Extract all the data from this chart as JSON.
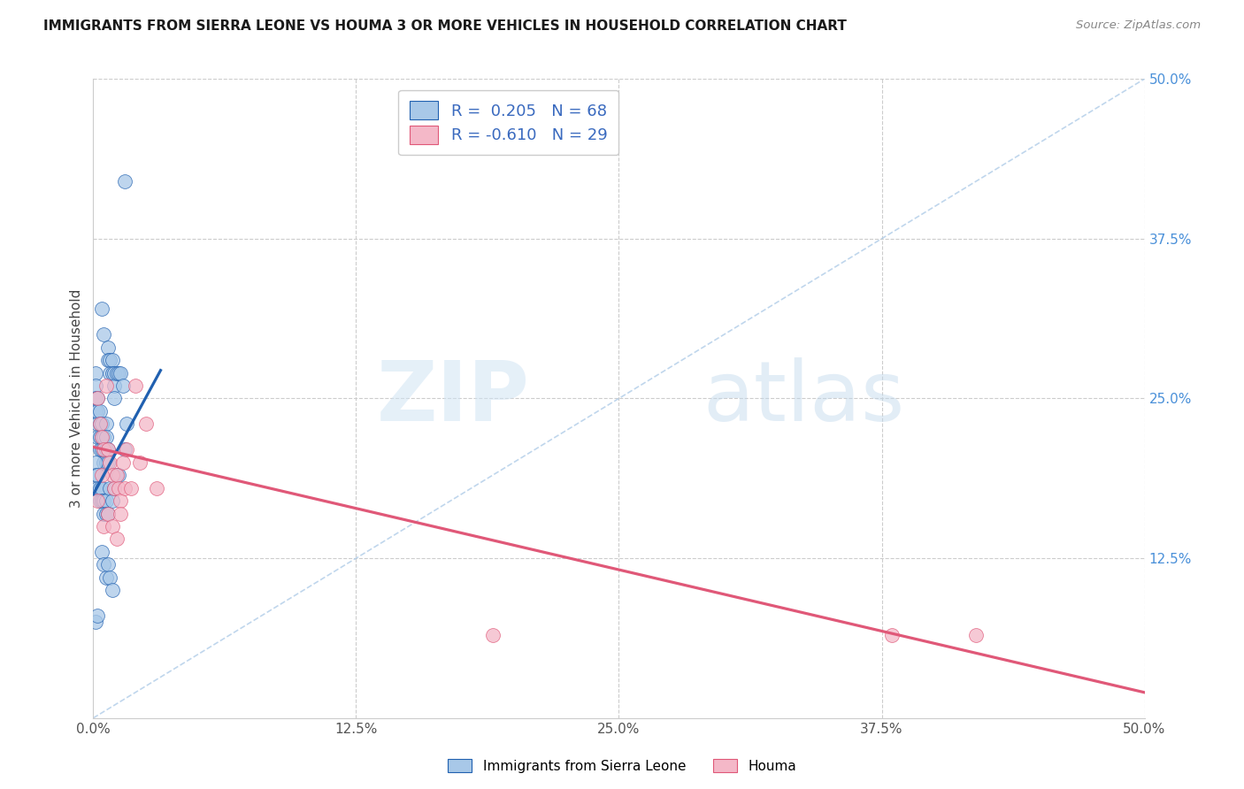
{
  "title": "IMMIGRANTS FROM SIERRA LEONE VS HOUMA 3 OR MORE VEHICLES IN HOUSEHOLD CORRELATION CHART",
  "source": "Source: ZipAtlas.com",
  "ylabel": "3 or more Vehicles in Household",
  "xlim": [
    0.0,
    0.5
  ],
  "ylim": [
    0.0,
    0.5
  ],
  "xtick_labels": [
    "0.0%",
    "",
    "",
    "",
    "",
    "12.5%",
    "",
    "",
    "",
    "",
    "25.0%",
    "",
    "",
    "",
    "",
    "37.5%",
    "",
    "",
    "",
    "",
    "50.0%"
  ],
  "xtick_vals": [
    0.0,
    0.025,
    0.05,
    0.075,
    0.1,
    0.125,
    0.15,
    0.175,
    0.2,
    0.225,
    0.25,
    0.275,
    0.3,
    0.325,
    0.35,
    0.375,
    0.4,
    0.425,
    0.45,
    0.475,
    0.5
  ],
  "ytick_right_labels": [
    "50.0%",
    "37.5%",
    "25.0%",
    "12.5%"
  ],
  "ytick_right_vals": [
    0.5,
    0.375,
    0.25,
    0.125
  ],
  "color_blue": "#a8c8e8",
  "color_pink": "#f4b8c8",
  "line_blue": "#2060b0",
  "line_pink": "#e05878",
  "line_dash_color": "#b0cce8",
  "background": "#ffffff",
  "sl_line_x0": 0.0,
  "sl_line_x1": 0.032,
  "sl_line_y0": 0.175,
  "sl_line_y1": 0.272,
  "h_line_x0": 0.0,
  "h_line_x1": 0.5,
  "h_line_y0": 0.212,
  "h_line_y1": 0.02,
  "sierra_x": [
    0.015,
    0.004,
    0.005,
    0.007,
    0.007,
    0.008,
    0.008,
    0.009,
    0.009,
    0.01,
    0.01,
    0.01,
    0.011,
    0.012,
    0.013,
    0.014,
    0.001,
    0.001,
    0.001,
    0.001,
    0.002,
    0.002,
    0.002,
    0.002,
    0.003,
    0.003,
    0.003,
    0.003,
    0.004,
    0.004,
    0.004,
    0.005,
    0.005,
    0.005,
    0.006,
    0.006,
    0.006,
    0.006,
    0.007,
    0.007,
    0.001,
    0.001,
    0.002,
    0.002,
    0.003,
    0.003,
    0.004,
    0.004,
    0.005,
    0.005,
    0.006,
    0.006,
    0.007,
    0.008,
    0.009,
    0.01,
    0.011,
    0.012,
    0.015,
    0.016,
    0.004,
    0.005,
    0.006,
    0.007,
    0.008,
    0.009,
    0.001,
    0.002
  ],
  "sierra_y": [
    0.42,
    0.32,
    0.3,
    0.29,
    0.28,
    0.28,
    0.27,
    0.28,
    0.27,
    0.27,
    0.26,
    0.25,
    0.27,
    0.27,
    0.27,
    0.26,
    0.27,
    0.26,
    0.25,
    0.24,
    0.25,
    0.24,
    0.23,
    0.22,
    0.24,
    0.23,
    0.22,
    0.21,
    0.23,
    0.22,
    0.21,
    0.22,
    0.21,
    0.2,
    0.23,
    0.22,
    0.21,
    0.2,
    0.21,
    0.2,
    0.2,
    0.19,
    0.19,
    0.18,
    0.18,
    0.17,
    0.18,
    0.17,
    0.17,
    0.16,
    0.17,
    0.16,
    0.16,
    0.18,
    0.17,
    0.18,
    0.19,
    0.19,
    0.21,
    0.23,
    0.13,
    0.12,
    0.11,
    0.12,
    0.11,
    0.1,
    0.075,
    0.08
  ],
  "houma_x": [
    0.002,
    0.003,
    0.004,
    0.005,
    0.006,
    0.007,
    0.008,
    0.009,
    0.01,
    0.011,
    0.012,
    0.013,
    0.014,
    0.015,
    0.016,
    0.018,
    0.02,
    0.022,
    0.025,
    0.03,
    0.005,
    0.007,
    0.009,
    0.011,
    0.013,
    0.19,
    0.38,
    0.42,
    0.002,
    0.004
  ],
  "houma_y": [
    0.25,
    0.23,
    0.22,
    0.21,
    0.26,
    0.21,
    0.2,
    0.19,
    0.18,
    0.19,
    0.18,
    0.17,
    0.2,
    0.18,
    0.21,
    0.18,
    0.26,
    0.2,
    0.23,
    0.18,
    0.15,
    0.16,
    0.15,
    0.14,
    0.16,
    0.065,
    0.065,
    0.065,
    0.17,
    0.19
  ]
}
